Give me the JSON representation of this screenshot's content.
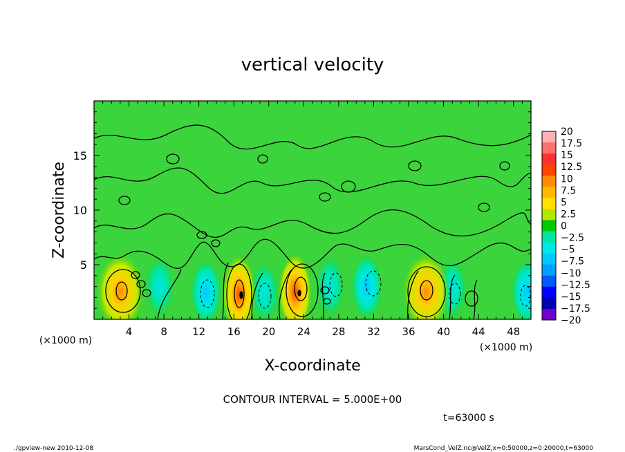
{
  "chart_data": {
    "type": "heatmap",
    "title": "vertical velocity",
    "xlabel": "X-coordinate",
    "ylabel": "Z-coordinate",
    "x_units": "(×1000 m)",
    "y_units": "(×1000 m)",
    "x_ticks": [
      "4",
      "8",
      "12",
      "16",
      "20",
      "24",
      "28",
      "32",
      "36",
      "40",
      "44",
      "48"
    ],
    "y_ticks": [
      "5",
      "10",
      "15"
    ],
    "xlim": [
      0,
      50
    ],
    "ylim": [
      0,
      20
    ],
    "grid": false,
    "colorbar": {
      "labels": [
        "20",
        "17.5",
        "15",
        "12.5",
        "10",
        "7.5",
        "5",
        "2.5",
        "0",
        "-2.5",
        "-5",
        "-7.5",
        "-10",
        "-12.5",
        "-15",
        "-17.5",
        "-20"
      ],
      "colors": [
        "#ffb0b0",
        "#ff7070",
        "#ff3030",
        "#ff4500",
        "#ff8c00",
        "#ffb700",
        "#ffe000",
        "#b4e600",
        "#00c800",
        "#00e6a0",
        "#00e6e6",
        "#00c8ff",
        "#00a0ff",
        "#005aff",
        "#0000ff",
        "#0000b4",
        "#6e00c8"
      ]
    },
    "updrafts": [
      {
        "x": 3.0,
        "z": 2.5,
        "peak": 10
      },
      {
        "x": 16.6,
        "z": 2.3,
        "peak": 15
      },
      {
        "x": 23.0,
        "z": 2.5,
        "peak": 15
      },
      {
        "x": 38.0,
        "z": 2.5,
        "peak": 10
      }
    ],
    "downdrafts": [
      {
        "x": 7.5,
        "z": 3.0,
        "peak": -3
      },
      {
        "x": 12.8,
        "z": 2.5,
        "peak": -5
      },
      {
        "x": 19.5,
        "z": 2.5,
        "peak": -4
      },
      {
        "x": 27.0,
        "z": 3.0,
        "peak": -3
      },
      {
        "x": 31.2,
        "z": 3.0,
        "peak": -5
      },
      {
        "x": 41.0,
        "z": 2.8,
        "peak": -4
      },
      {
        "x": 49.5,
        "z": 2.5,
        "peak": -6
      }
    ],
    "contour_interval": "CONTOUR INTERVAL = 5.000E+00",
    "time_label": "t=63000 s"
  },
  "footer": {
    "left": "./gpview-new   2010-12-08",
    "right": "MarsCond_VelZ.nc@VelZ,x=0:50000,z=0:20000,t=63000"
  }
}
